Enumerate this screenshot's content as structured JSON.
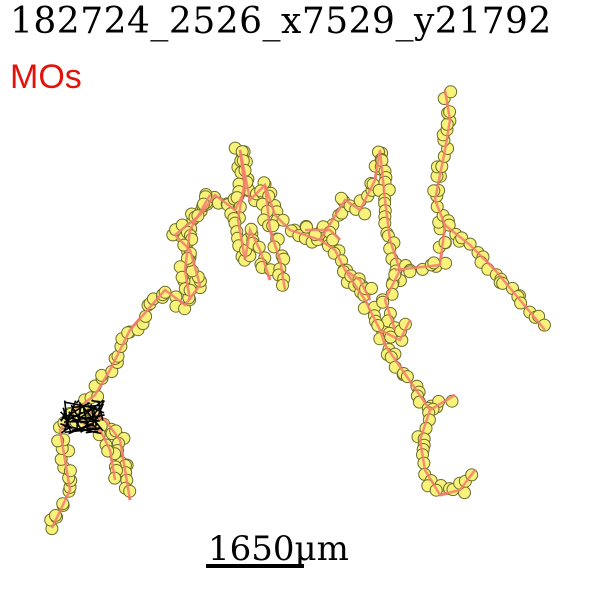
{
  "header": {
    "title": "182724_2526_x7529_y21792",
    "subtitle": "MOs"
  },
  "scalebar": {
    "label": "1650μm"
  },
  "colors": {
    "trace_line": "#f47c6c",
    "node_fill": "#f7f27a",
    "node_stroke": "#6b6a2a",
    "subtitle": "#e3120b",
    "dense_core": "#000000"
  }
}
